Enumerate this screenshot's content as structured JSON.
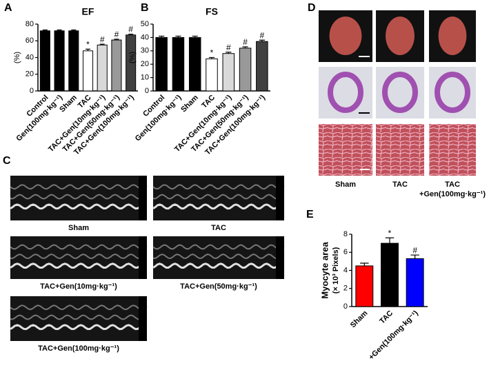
{
  "chart_data": [
    {
      "type": "bar",
      "title": "EF",
      "ylabel": "(%)",
      "categories": [
        "Control",
        "Gen(100mg·kg⁻¹)",
        "Sham",
        "TAC",
        "TAC+Gen(10mg·kg⁻¹)",
        "TAC+Gen(50mg·kg⁻¹)",
        "TAC+Gen(100mg·kg⁻¹)"
      ],
      "values": [
        72,
        72,
        72,
        48,
        55,
        61,
        67
      ],
      "errors": [
        1,
        1,
        1,
        2,
        1,
        1,
        1
      ],
      "colors": [
        "#000000",
        "#000000",
        "#000000",
        "#ffffff",
        "#d9d9d9",
        "#999999",
        "#404040"
      ],
      "annotations": [
        null,
        null,
        null,
        "*",
        "#",
        "#",
        "#"
      ],
      "ylim": [
        0,
        80
      ],
      "yticks": [
        0,
        20,
        40,
        60,
        80
      ]
    },
    {
      "type": "bar",
      "title": "FS",
      "ylabel": "(%)",
      "categories": [
        "Control",
        "Gen(100mg·kg⁻¹)",
        "Sham",
        "TAC",
        "TAC+Gen(10mg·kg⁻¹)",
        "TAC+Gen(50mg·kg⁻¹)",
        "TAC+Gen(100mg·kg⁻¹)"
      ],
      "values": [
        40,
        40,
        40,
        24,
        28,
        32,
        37
      ],
      "errors": [
        1,
        1,
        1,
        1,
        1,
        1,
        1
      ],
      "colors": [
        "#000000",
        "#000000",
        "#000000",
        "#ffffff",
        "#d9d9d9",
        "#999999",
        "#404040"
      ],
      "annotations": [
        null,
        null,
        null,
        "*",
        "#",
        "#",
        "#"
      ],
      "ylim": [
        0,
        50
      ],
      "yticks": [
        0,
        10,
        20,
        30,
        40,
        50
      ]
    },
    {
      "type": "bar",
      "ylabel": [
        "Myocyte area",
        "(× 10³ Pixels)"
      ],
      "categories": [
        "Sham",
        "TAC",
        "+Gen(100mg·kg⁻¹)"
      ],
      "values": [
        4.5,
        7.0,
        5.3
      ],
      "errors": [
        0.3,
        0.6,
        0.4
      ],
      "colors": [
        "#ff0000",
        "#000000",
        "#0000ff"
      ],
      "annotations": [
        null,
        "*",
        "#"
      ],
      "ylim": [
        0,
        8
      ],
      "yticks": [
        0,
        2,
        4,
        6,
        8
      ]
    }
  ],
  "panel_labels": [
    "A",
    "B",
    "C",
    "D",
    "E"
  ],
  "echo_captions": [
    "Sham",
    "TAC",
    "TAC+Gen(10mg·kg⁻¹)",
    "TAC+Gen(50mg·kg⁻¹)",
    "TAC+Gen(100mg·kg⁻¹)"
  ],
  "histology_captions": [
    [
      "Sham"
    ],
    [
      "TAC"
    ],
    [
      "TAC",
      "+Gen(100mg·kg⁻¹)"
    ]
  ]
}
